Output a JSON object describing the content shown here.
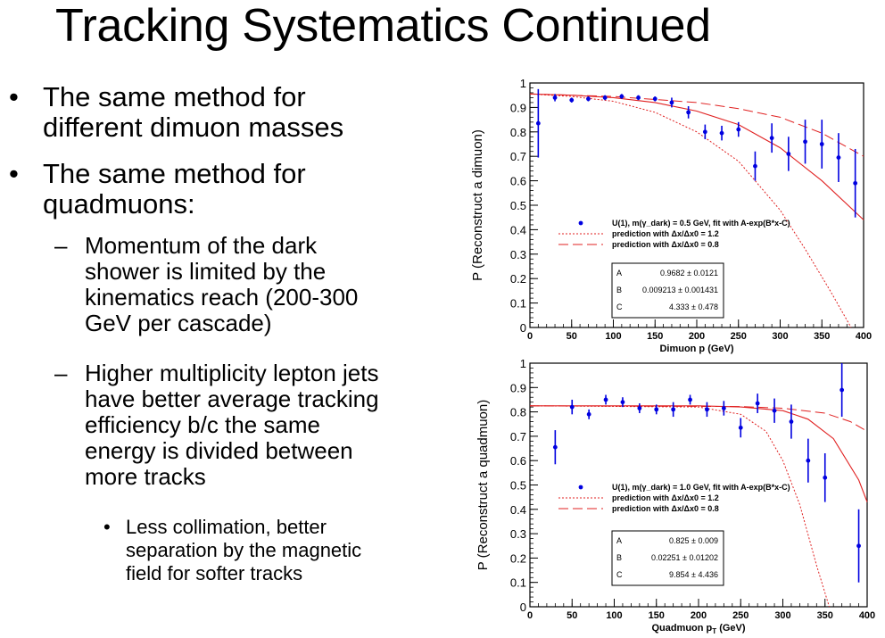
{
  "slide": {
    "title": "Tracking Systematics Continued",
    "bullets": [
      {
        "level": 1,
        "lines": [
          "The same method for",
          "different dimuon masses"
        ]
      },
      {
        "level": 1,
        "lines": [
          "The same method for",
          "quadmuons:"
        ]
      },
      {
        "level": 2,
        "lines": [
          "Momentum of the dark",
          "shower is limited by the",
          "kinematics reach (200-300",
          "GeV per cascade)"
        ]
      },
      {
        "level": 2,
        "lines": [
          "Higher multiplicity lepton jets",
          "have better average tracking",
          "efficiency b/c the same",
          "energy is divided between",
          "more tracks"
        ]
      },
      {
        "level": 3,
        "lines": [
          "Less collimation, better",
          "separation by the magnetic",
          "field for softer tracks"
        ]
      }
    ]
  },
  "chart_data": [
    {
      "type": "scatter",
      "xlabel_main": "Dimuon p",
      "xlabel_unit": "(GeV)",
      "ylabel": "P (Reconstruct a dimuon)",
      "xlim": [
        0,
        400
      ],
      "ylim": [
        0,
        1
      ],
      "xticks": [
        0,
        50,
        100,
        150,
        200,
        250,
        300,
        350,
        400
      ],
      "yticks": [
        0,
        0.1,
        0.2,
        0.3,
        0.4,
        0.5,
        0.6,
        0.7,
        0.8,
        0.9,
        1
      ],
      "legend": {
        "fit": "U(1), m(γ_dark) = 0.5 GeV, fit with A-exp(B*x-C)",
        "pred1": "prediction with Δx/Δx0 = 1.2",
        "pred2": "prediction with Δx/Δx0 = 0.8"
      },
      "params": [
        {
          "name": "A",
          "value": "0.9682 ± 0.0121"
        },
        {
          "name": "B",
          "value": "0.009213 ± 0.001431"
        },
        {
          "name": "C",
          "value": "4.333 ± 0.478"
        }
      ],
      "series": {
        "x": [
          10,
          30,
          50,
          70,
          90,
          110,
          130,
          150,
          170,
          190,
          210,
          230,
          250,
          270,
          290,
          310,
          330,
          350,
          370,
          390
        ],
        "y": [
          0.835,
          0.94,
          0.93,
          0.935,
          0.94,
          0.945,
          0.94,
          0.935,
          0.92,
          0.88,
          0.8,
          0.795,
          0.81,
          0.66,
          0.775,
          0.71,
          0.76,
          0.75,
          0.695,
          0.59
        ],
        "yerr": [
          0.14,
          0.015,
          0.01,
          0.01,
          0.01,
          0.01,
          0.01,
          0.01,
          0.02,
          0.025,
          0.03,
          0.03,
          0.03,
          0.06,
          0.06,
          0.07,
          0.09,
          0.1,
          0.1,
          0.14
        ]
      },
      "curves": {
        "fit": {
          "x": [
            0,
            50,
            100,
            150,
            200,
            250,
            300,
            350,
            400
          ],
          "y": [
            0.955,
            0.95,
            0.94,
            0.92,
            0.885,
            0.83,
            0.735,
            0.6,
            0.44
          ]
        },
        "pred1": {
          "x": [
            0,
            50,
            100,
            150,
            200,
            250,
            300,
            330,
            360,
            385
          ],
          "y": [
            0.955,
            0.945,
            0.925,
            0.88,
            0.8,
            0.68,
            0.48,
            0.32,
            0.15,
            0
          ]
        },
        "pred2": {
          "x": [
            0,
            100,
            200,
            250,
            300,
            350,
            400
          ],
          "y": [
            0.955,
            0.945,
            0.92,
            0.895,
            0.86,
            0.795,
            0.7
          ]
        }
      }
    },
    {
      "type": "scatter",
      "xlabel_main": "Quadmuon p",
      "xlabel_sub": "T",
      "xlabel_unit": "(GeV)",
      "ylabel": "P (Reconstruct a quadmuon)",
      "xlim": [
        0,
        400
      ],
      "ylim": [
        0,
        1
      ],
      "xticks": [
        0,
        50,
        100,
        150,
        200,
        250,
        300,
        350,
        400
      ],
      "yticks": [
        0,
        0.1,
        0.2,
        0.3,
        0.4,
        0.5,
        0.6,
        0.7,
        0.8,
        0.9,
        1
      ],
      "legend": {
        "fit": "U(1), m(γ_dark) = 1.0 GeV, fit with A-exp(B*x-C)",
        "pred1": "prediction with Δx/Δx0 = 1.2",
        "pred2": "prediction with Δx/Δx0 = 0.8"
      },
      "params": [
        {
          "name": "A",
          "value": "0.825 ± 0.009"
        },
        {
          "name": "B",
          "value": "0.02251 ± 0.01202"
        },
        {
          "name": "C",
          "value": "9.854 ± 4.436"
        }
      ],
      "series": {
        "x": [
          30,
          50,
          70,
          90,
          110,
          130,
          150,
          170,
          190,
          210,
          230,
          250,
          270,
          290,
          310,
          330,
          350,
          370,
          390
        ],
        "y": [
          0.655,
          0.82,
          0.79,
          0.85,
          0.84,
          0.815,
          0.81,
          0.81,
          0.85,
          0.81,
          0.815,
          0.735,
          0.835,
          0.805,
          0.76,
          0.6,
          0.53,
          0.89,
          0.25
        ],
        "yerr": [
          0.07,
          0.03,
          0.02,
          0.02,
          0.02,
          0.02,
          0.02,
          0.03,
          0.02,
          0.03,
          0.03,
          0.04,
          0.04,
          0.05,
          0.07,
          0.09,
          0.1,
          0.11,
          0.15
        ]
      },
      "curves": {
        "fit": {
          "x": [
            0,
            200,
            250,
            300,
            330,
            360,
            390,
            400
          ],
          "y": [
            0.825,
            0.825,
            0.82,
            0.805,
            0.77,
            0.69,
            0.52,
            0.43
          ]
        },
        "pred1": {
          "x": [
            0,
            200,
            250,
            280,
            300,
            320,
            340,
            355
          ],
          "y": [
            0.825,
            0.82,
            0.79,
            0.72,
            0.6,
            0.42,
            0.17,
            0
          ]
        },
        "pred2": {
          "x": [
            0,
            250,
            300,
            350,
            380,
            400
          ],
          "y": [
            0.825,
            0.822,
            0.815,
            0.795,
            0.76,
            0.72
          ]
        }
      }
    }
  ]
}
